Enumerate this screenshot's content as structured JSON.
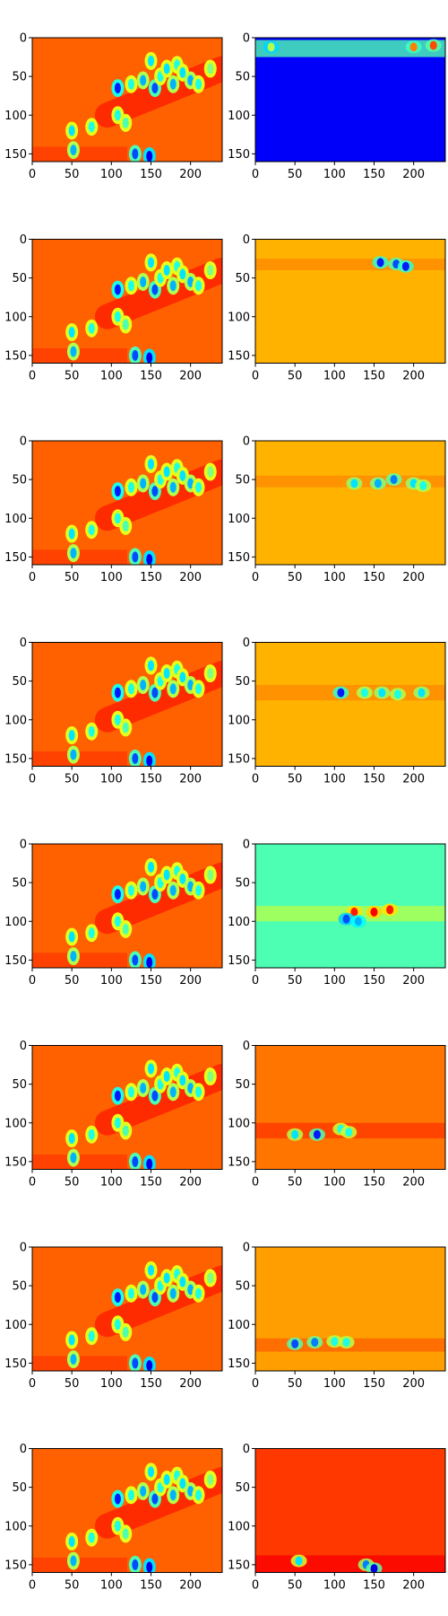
{
  "chart_data": {
    "type": "heatmap",
    "colormap": "jet",
    "layout": {
      "rows": 8,
      "cols": 2
    },
    "axes_defaults": {
      "xlim": [
        0,
        240
      ],
      "ylim": [
        160,
        0
      ],
      "xticks": [
        0,
        50,
        100,
        150,
        200
      ],
      "yticks": [
        0,
        50,
        100,
        150
      ],
      "xticklabels": [
        "0",
        "50",
        "100",
        "150",
        "200"
      ],
      "yticklabels": [
        "0",
        "50",
        "100",
        "150"
      ],
      "grid": false
    },
    "input_pattern": {
      "background_value": 0.78,
      "band_value": 0.85,
      "band_from": [
        95,
        100
      ],
      "band_to": [
        240,
        40
      ],
      "spots": [
        {
          "x": 50,
          "y": 120,
          "v": 0.35
        },
        {
          "x": 52,
          "y": 145,
          "v": 0.3
        },
        {
          "x": 75,
          "y": 115,
          "v": 0.4
        },
        {
          "x": 108,
          "y": 65,
          "v": 0.15
        },
        {
          "x": 108,
          "y": 100,
          "v": 0.4
        },
        {
          "x": 118,
          "y": 110,
          "v": 0.45
        },
        {
          "x": 125,
          "y": 60,
          "v": 0.4
        },
        {
          "x": 130,
          "y": 150,
          "v": 0.2
        },
        {
          "x": 140,
          "y": 55,
          "v": 0.3
        },
        {
          "x": 148,
          "y": 153,
          "v": 0.1
        },
        {
          "x": 150,
          "y": 30,
          "v": 0.35
        },
        {
          "x": 155,
          "y": 65,
          "v": 0.2
        },
        {
          "x": 162,
          "y": 50,
          "v": 0.4
        },
        {
          "x": 170,
          "y": 40,
          "v": 0.35
        },
        {
          "x": 178,
          "y": 60,
          "v": 0.3
        },
        {
          "x": 183,
          "y": 35,
          "v": 0.4
        },
        {
          "x": 190,
          "y": 45,
          "v": 0.35
        },
        {
          "x": 200,
          "y": 55,
          "v": 0.3
        },
        {
          "x": 210,
          "y": 60,
          "v": 0.4
        },
        {
          "x": 225,
          "y": 40,
          "v": 0.5
        }
      ]
    },
    "panels": [
      {
        "row": 0,
        "col": 0,
        "role": "input"
      },
      {
        "row": 0,
        "col": 1,
        "role": "attention",
        "background_value": 0.12,
        "band_y": [
          3,
          25
        ],
        "band_value": 0.45,
        "features": [
          {
            "x": 20,
            "y": 12,
            "v": 0.55
          },
          {
            "x": 200,
            "y": 12,
            "v": 0.75
          },
          {
            "x": 225,
            "y": 10,
            "v": 0.8
          }
        ]
      },
      {
        "row": 1,
        "col": 0,
        "role": "input"
      },
      {
        "row": 1,
        "col": 1,
        "role": "attention",
        "background_value": 0.7,
        "band_y": [
          25,
          40
        ],
        "band_value": 0.74,
        "features": [
          {
            "x": 158,
            "y": 30,
            "v": 0.15
          },
          {
            "x": 178,
            "y": 32,
            "v": 0.2
          },
          {
            "x": 190,
            "y": 35,
            "v": 0.15
          }
        ]
      },
      {
        "row": 2,
        "col": 0,
        "role": "input"
      },
      {
        "row": 2,
        "col": 1,
        "role": "attention",
        "background_value": 0.7,
        "band_y": [
          45,
          60
        ],
        "band_value": 0.74,
        "features": [
          {
            "x": 125,
            "y": 55,
            "v": 0.35
          },
          {
            "x": 155,
            "y": 55,
            "v": 0.3
          },
          {
            "x": 175,
            "y": 50,
            "v": 0.25
          },
          {
            "x": 200,
            "y": 55,
            "v": 0.35
          },
          {
            "x": 212,
            "y": 58,
            "v": 0.4
          }
        ]
      },
      {
        "row": 3,
        "col": 0,
        "role": "input"
      },
      {
        "row": 3,
        "col": 1,
        "role": "attention",
        "background_value": 0.7,
        "band_y": [
          55,
          75
        ],
        "band_value": 0.74,
        "features": [
          {
            "x": 108,
            "y": 65,
            "v": 0.15
          },
          {
            "x": 138,
            "y": 65,
            "v": 0.4
          },
          {
            "x": 160,
            "y": 65,
            "v": 0.35
          },
          {
            "x": 180,
            "y": 67,
            "v": 0.4
          },
          {
            "x": 210,
            "y": 65,
            "v": 0.35
          }
        ]
      },
      {
        "row": 4,
        "col": 0,
        "role": "input"
      },
      {
        "row": 4,
        "col": 1,
        "role": "attention",
        "background_value": 0.45,
        "band_y": [
          80,
          100
        ],
        "band_value": 0.55,
        "features": [
          {
            "x": 125,
            "y": 88,
            "v": 0.85
          },
          {
            "x": 150,
            "y": 88,
            "v": 0.88
          },
          {
            "x": 170,
            "y": 85,
            "v": 0.85
          },
          {
            "x": 115,
            "y": 97,
            "v": 0.2
          },
          {
            "x": 130,
            "y": 100,
            "v": 0.3
          }
        ]
      },
      {
        "row": 5,
        "col": 0,
        "role": "input"
      },
      {
        "row": 5,
        "col": 1,
        "role": "attention",
        "background_value": 0.76,
        "band_y": [
          100,
          120
        ],
        "band_value": 0.82,
        "features": [
          {
            "x": 50,
            "y": 115,
            "v": 0.35
          },
          {
            "x": 78,
            "y": 115,
            "v": 0.15
          },
          {
            "x": 108,
            "y": 108,
            "v": 0.4
          },
          {
            "x": 118,
            "y": 112,
            "v": 0.4
          }
        ]
      },
      {
        "row": 6,
        "col": 0,
        "role": "input"
      },
      {
        "row": 6,
        "col": 1,
        "role": "attention",
        "background_value": 0.72,
        "band_y": [
          118,
          135
        ],
        "band_value": 0.78,
        "features": [
          {
            "x": 50,
            "y": 125,
            "v": 0.2
          },
          {
            "x": 75,
            "y": 123,
            "v": 0.25
          },
          {
            "x": 100,
            "y": 122,
            "v": 0.4
          },
          {
            "x": 115,
            "y": 123,
            "v": 0.4
          }
        ]
      },
      {
        "row": 7,
        "col": 0,
        "role": "input"
      },
      {
        "row": 7,
        "col": 1,
        "role": "attention",
        "background_value": 0.82,
        "band_y": [
          138,
          160
        ],
        "band_value": 0.88,
        "features": [
          {
            "x": 55,
            "y": 145,
            "v": 0.35
          },
          {
            "x": 140,
            "y": 150,
            "v": 0.25
          },
          {
            "x": 150,
            "y": 155,
            "v": 0.1
          }
        ]
      }
    ]
  }
}
